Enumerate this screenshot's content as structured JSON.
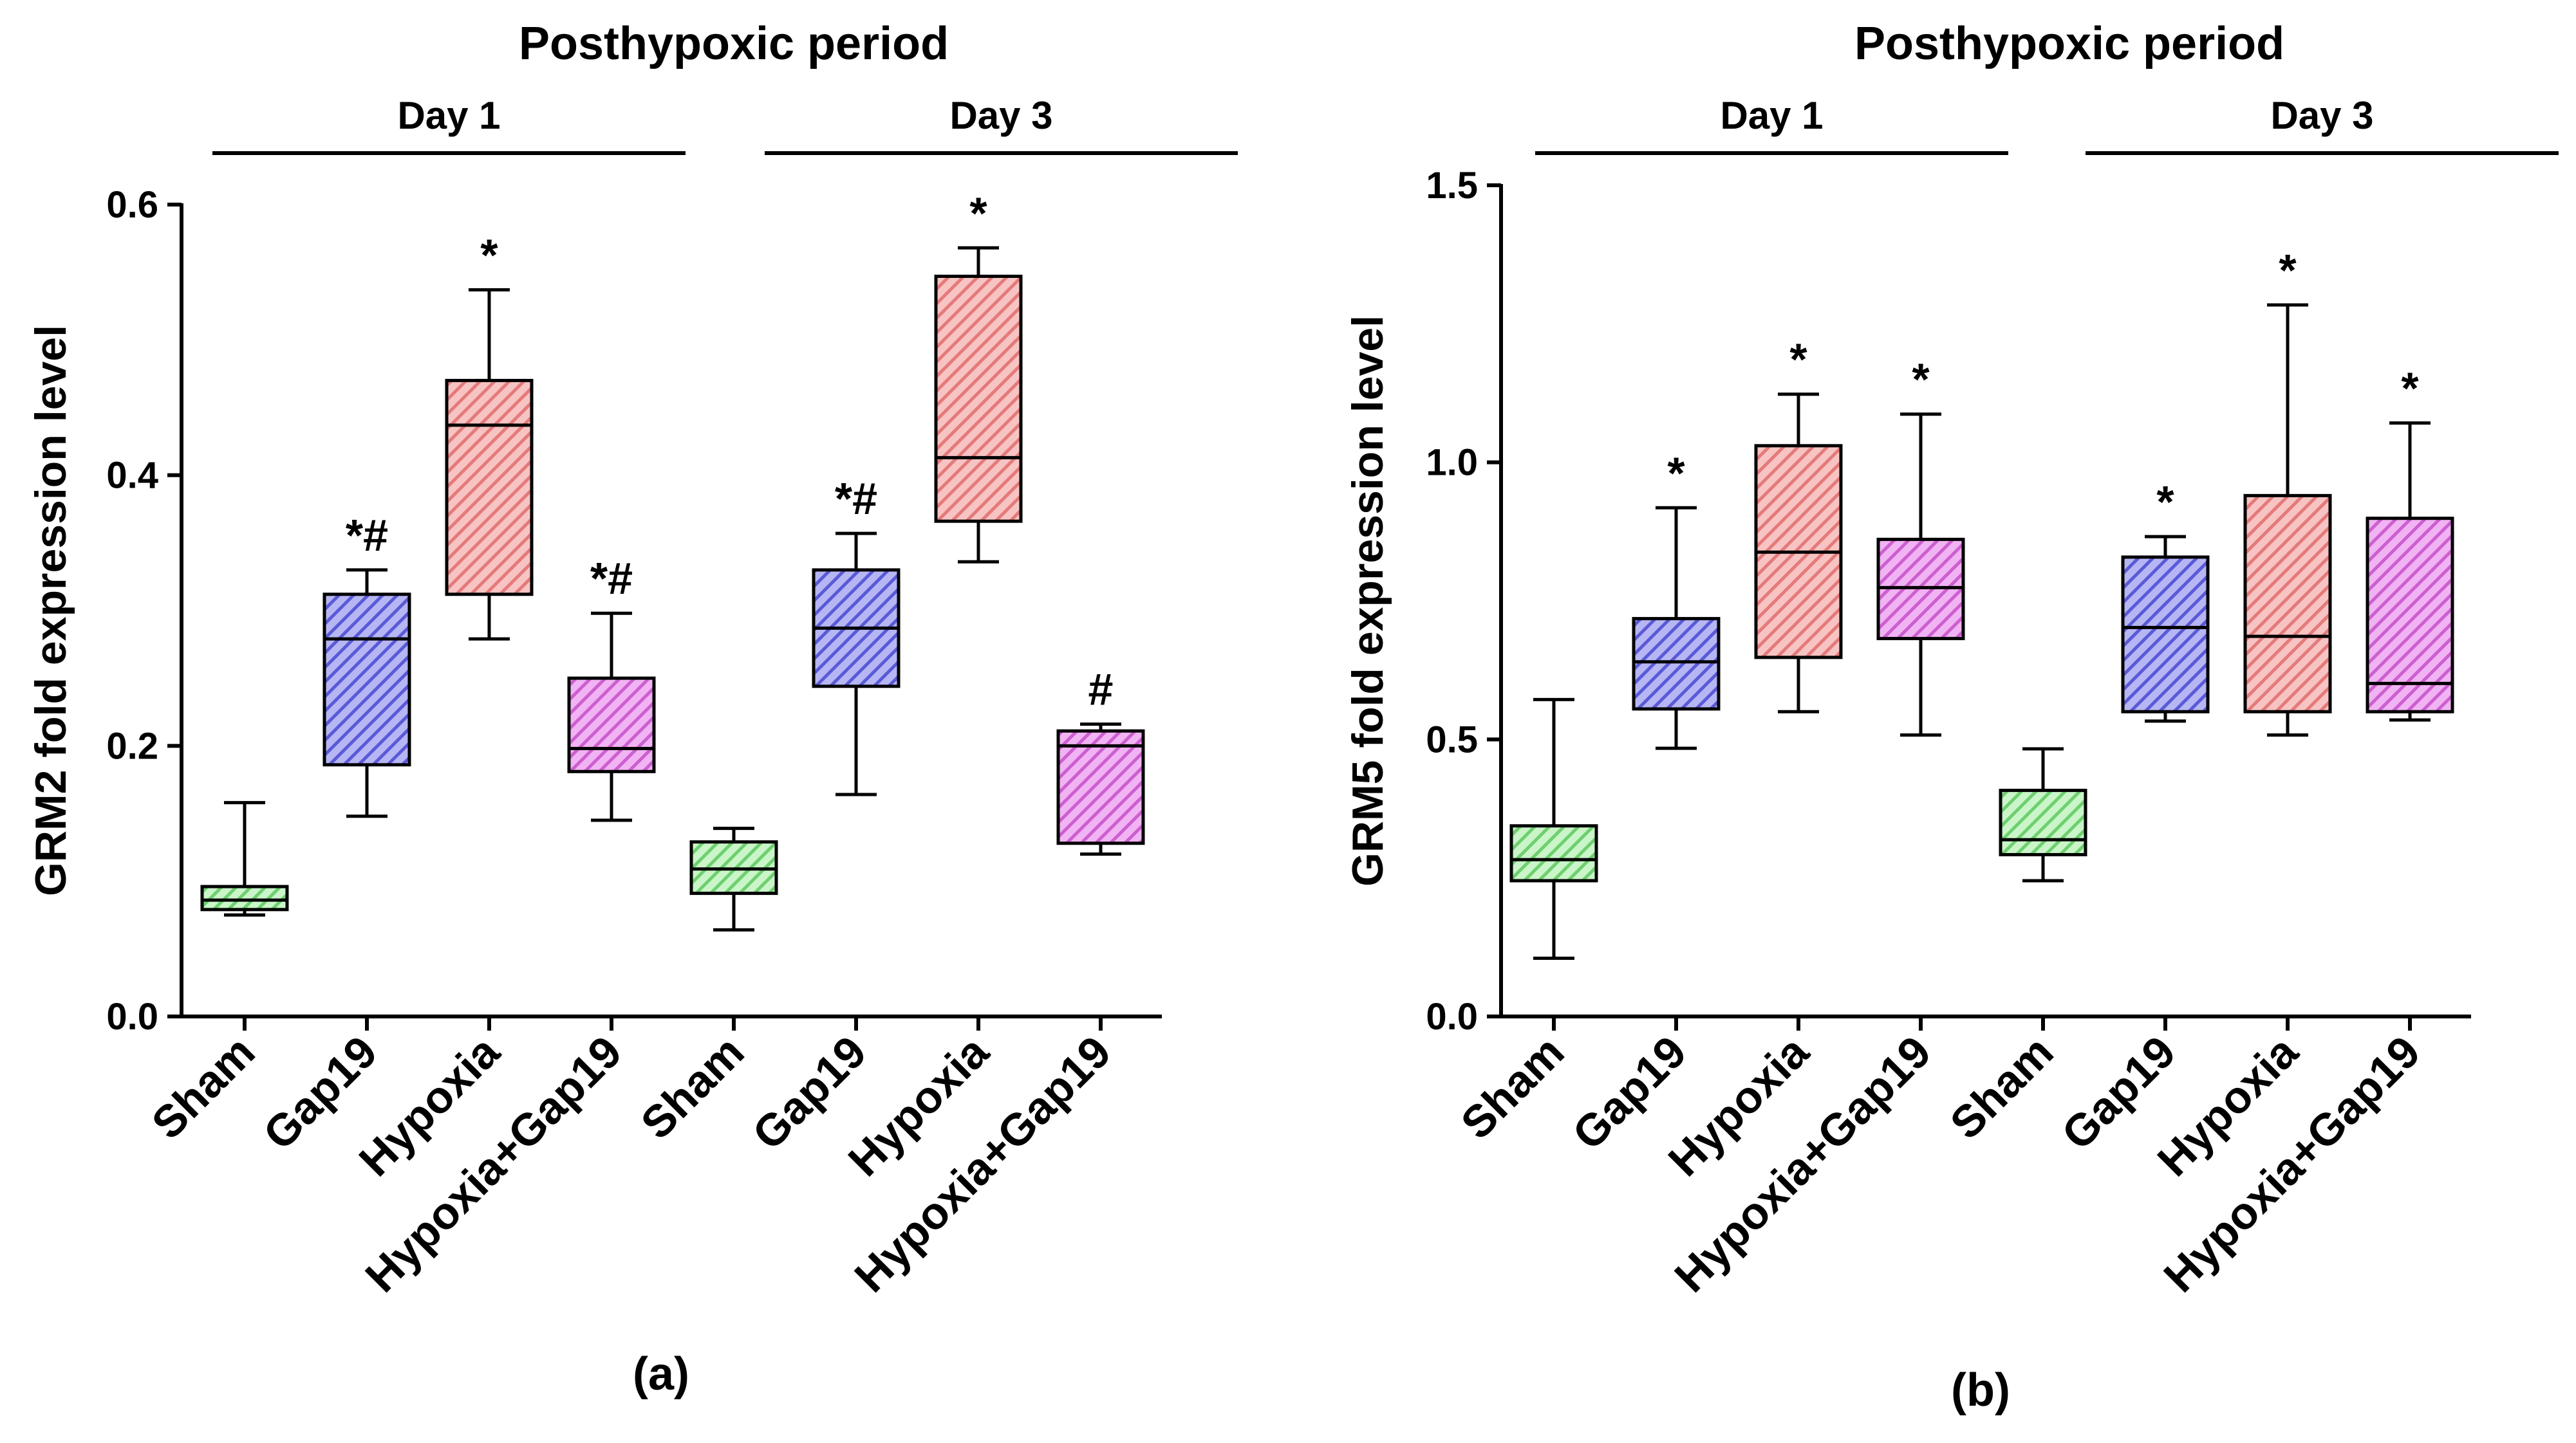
{
  "colors": {
    "sham": {
      "fill": "#c9f5c9",
      "stripe": "#6fcf6f"
    },
    "gap19": {
      "fill": "#b6b6f4",
      "stripe": "#5a5ad8"
    },
    "hypoxia": {
      "fill": "#f8c3c3",
      "stripe": "#e47a7a"
    },
    "hypoxia_gap19": {
      "fill": "#f1b3f3",
      "stripe": "#cc5fd0"
    }
  },
  "chart_data": [
    {
      "type": "box",
      "panel_label": "(a)",
      "header": "Posthypoxic period",
      "day_groups": [
        {
          "label": "Day 1",
          "categories": [
            "Sham",
            "Gap19",
            "Hypoxia",
            "Hypoxia+Gap19"
          ]
        },
        {
          "label": "Day 3",
          "categories": [
            "Sham",
            "Gap19",
            "Hypoxia",
            "Hypoxia+Gap19"
          ]
        }
      ],
      "ylabel": "GRM2 fold expression level",
      "ylim": [
        0,
        0.6
      ],
      "yticks": [
        "0.0",
        "0.2",
        "0.4",
        "0.6"
      ],
      "ytick_values": [
        0,
        0.2,
        0.4,
        0.6
      ],
      "boxes": [
        {
          "group": "sham",
          "min": 0.075,
          "q1": 0.079,
          "median": 0.086,
          "q3": 0.096,
          "max": 0.158,
          "sig": ""
        },
        {
          "group": "gap19",
          "min": 0.148,
          "q1": 0.186,
          "median": 0.279,
          "q3": 0.312,
          "max": 0.33,
          "sig": "*#"
        },
        {
          "group": "hypoxia",
          "min": 0.279,
          "q1": 0.312,
          "median": 0.437,
          "q3": 0.47,
          "max": 0.537,
          "sig": "*"
        },
        {
          "group": "hypoxia_gap19",
          "min": 0.145,
          "q1": 0.181,
          "median": 0.198,
          "q3": 0.25,
          "max": 0.298,
          "sig": "*#"
        },
        {
          "group": "sham",
          "min": 0.064,
          "q1": 0.091,
          "median": 0.109,
          "q3": 0.129,
          "max": 0.139,
          "sig": ""
        },
        {
          "group": "gap19",
          "min": 0.164,
          "q1": 0.244,
          "median": 0.287,
          "q3": 0.33,
          "max": 0.357,
          "sig": "*#"
        },
        {
          "group": "hypoxia",
          "min": 0.336,
          "q1": 0.366,
          "median": 0.413,
          "q3": 0.547,
          "max": 0.568,
          "sig": "*"
        },
        {
          "group": "hypoxia_gap19",
          "min": 0.12,
          "q1": 0.128,
          "median": 0.2,
          "q3": 0.211,
          "max": 0.216,
          "sig": "#"
        }
      ]
    },
    {
      "type": "box",
      "panel_label": "(b)",
      "header": "Posthypoxic period",
      "day_groups": [
        {
          "label": "Day 1",
          "categories": [
            "Sham",
            "Gap19",
            "Hypoxia",
            "Hypoxia+Gap19"
          ]
        },
        {
          "label": "Day 3",
          "categories": [
            "Sham",
            "Gap19",
            "Hypoxia",
            "Hypoxia+Gap19"
          ]
        }
      ],
      "ylabel": "GRM5 fold expression level",
      "ylim": [
        0,
        1.5
      ],
      "yticks": [
        "0.0",
        "0.5",
        "1.0",
        "1.5"
      ],
      "ytick_values": [
        0,
        0.5,
        1.0,
        1.5
      ],
      "boxes": [
        {
          "group": "sham",
          "min": 0.105,
          "q1": 0.245,
          "median": 0.283,
          "q3": 0.344,
          "max": 0.572,
          "sig": ""
        },
        {
          "group": "gap19",
          "min": 0.484,
          "q1": 0.555,
          "median": 0.64,
          "q3": 0.718,
          "max": 0.918,
          "sig": "*"
        },
        {
          "group": "hypoxia",
          "min": 0.55,
          "q1": 0.648,
          "median": 0.838,
          "q3": 1.03,
          "max": 1.123,
          "sig": "*"
        },
        {
          "group": "hypoxia_gap19",
          "min": 0.508,
          "q1": 0.682,
          "median": 0.774,
          "q3": 0.861,
          "max": 1.087,
          "sig": "*"
        },
        {
          "group": "sham",
          "min": 0.245,
          "q1": 0.292,
          "median": 0.319,
          "q3": 0.408,
          "max": 0.483,
          "sig": ""
        },
        {
          "group": "gap19",
          "min": 0.533,
          "q1": 0.55,
          "median": 0.702,
          "q3": 0.829,
          "max": 0.866,
          "sig": "*"
        },
        {
          "group": "hypoxia",
          "min": 0.508,
          "q1": 0.55,
          "median": 0.686,
          "q3": 0.94,
          "max": 1.284,
          "sig": "*"
        },
        {
          "group": "hypoxia_gap19",
          "min": 0.535,
          "q1": 0.55,
          "median": 0.601,
          "q3": 0.899,
          "max": 1.071,
          "sig": "*"
        }
      ]
    }
  ]
}
